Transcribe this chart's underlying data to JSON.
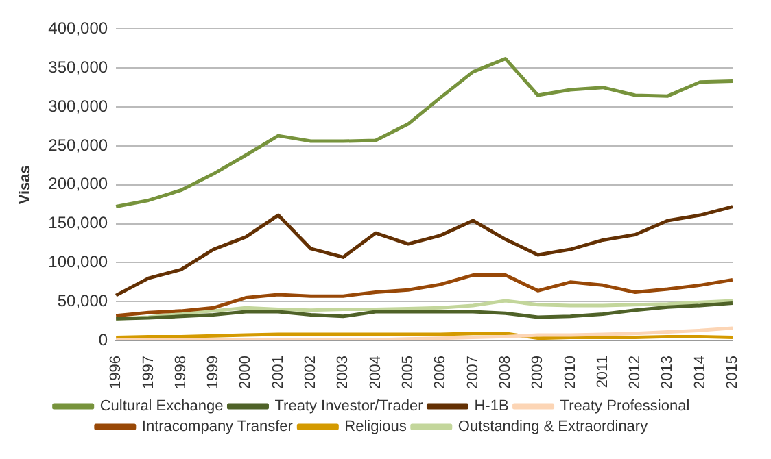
{
  "chart_data": {
    "type": "line",
    "ylabel": "Visas",
    "categories": [
      "1996",
      "1997",
      "1998",
      "1999",
      "2000",
      "2001",
      "2002",
      "2003",
      "2004",
      "2005",
      "2006",
      "2007",
      "2008",
      "2009",
      "2010",
      "2011",
      "2012",
      "2013",
      "2014",
      "2015"
    ],
    "series": [
      {
        "name": "Cultural Exchange",
        "color": "#77933c",
        "values": [
          172000,
          180000,
          193000,
          214000,
          238000,
          263000,
          256000,
          256000,
          257000,
          278000,
          312000,
          345000,
          362000,
          315000,
          322000,
          325000,
          315000,
          314000,
          332000,
          333000
        ]
      },
      {
        "name": "Treaty Investor/Trader",
        "color": "#4f6228",
        "values": [
          28000,
          29000,
          31000,
          33000,
          37000,
          37000,
          33000,
          31000,
          37000,
          37000,
          37000,
          37000,
          35000,
          30000,
          31000,
          34000,
          39000,
          43000,
          45000,
          48000
        ]
      },
      {
        "name": "H-1B",
        "color": "#633003",
        "values": [
          58000,
          80000,
          91000,
          117000,
          133000,
          161000,
          118000,
          107000,
          138000,
          124000,
          135000,
          154000,
          130000,
          110000,
          117000,
          129000,
          136000,
          154000,
          161000,
          172000
        ]
      },
      {
        "name": "Treaty Professional",
        "color": "#fcd5b5",
        "values": [
          1000,
          1000,
          1000,
          1000,
          1000,
          1000,
          1000,
          1000,
          1000,
          2000,
          3000,
          4000,
          5000,
          7000,
          7000,
          8000,
          9000,
          11000,
          13000,
          16000
        ]
      },
      {
        "name": "Intracompany Transfer",
        "color": "#984807",
        "values": [
          32000,
          36000,
          38000,
          42000,
          55000,
          59000,
          57000,
          57000,
          62000,
          65000,
          72000,
          84000,
          84000,
          64000,
          75000,
          71000,
          62000,
          66000,
          71000,
          78000
        ]
      },
      {
        "name": "Religious",
        "color": "#d49a00",
        "values": [
          4000,
          5000,
          5000,
          6000,
          7000,
          8000,
          8000,
          8000,
          8000,
          8000,
          8000,
          9000,
          9000,
          3000,
          4000,
          4000,
          4000,
          5000,
          5000,
          4000
        ]
      },
      {
        "name": "Outstanding & Extraordinary",
        "color": "#c3d69b",
        "values": [
          28000,
          30000,
          35000,
          38000,
          42000,
          40000,
          39000,
          40000,
          40000,
          41000,
          42000,
          45000,
          51000,
          46000,
          45000,
          45000,
          46000,
          47000,
          49000,
          51000
        ]
      }
    ],
    "ylim": [
      0,
      400000
    ],
    "yticks": [
      0,
      {
        "value": 50000,
        "label": "50,000"
      },
      {
        "value": 100000,
        "label": "100,000"
      },
      {
        "value": 150000,
        "label": "150,000"
      },
      {
        "value": 200000,
        "label": "200,000"
      },
      {
        "value": 250000,
        "label": "250,000"
      },
      {
        "value": 300000,
        "label": "300,000"
      },
      {
        "value": 350000,
        "label": "350,000"
      },
      {
        "value": 400000,
        "label": "400,000"
      }
    ],
    "grid": "y",
    "legend": "bottom"
  }
}
